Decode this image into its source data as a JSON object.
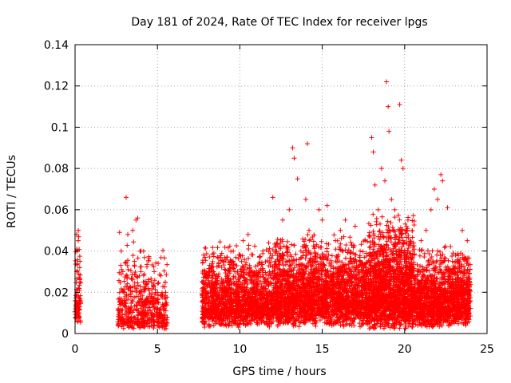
{
  "chart_data": {
    "type": "scatter",
    "title": "Day 181 of 2024, Rate Of TEC Index for receiver lpgs",
    "xlabel": "GPS time / hours",
    "ylabel": "ROTI / TECUs",
    "xlim": [
      0,
      25
    ],
    "ylim": [
      0,
      0.14
    ],
    "xticks": [
      0,
      5,
      10,
      15,
      20,
      25
    ],
    "yticks": [
      0,
      0.02,
      0.04,
      0.06,
      0.08,
      0.1,
      0.12,
      0.14
    ],
    "xtick_labels": [
      "0",
      "5",
      "10",
      "15",
      "20",
      "25"
    ],
    "ytick_labels": [
      "0",
      "0.02",
      "0.04",
      "0.06",
      "0.08",
      "0.1",
      "0.12",
      "0.14"
    ],
    "grid": true,
    "marker": "+",
    "color": "#ff0000",
    "series": [
      {
        "name": "ROTI",
        "points": [
          [
            0.05,
            0.008
          ],
          [
            0.1,
            0.048
          ],
          [
            0.1,
            0.03
          ],
          [
            0.12,
            0.015
          ],
          [
            0.15,
            0.04
          ],
          [
            0.2,
            0.05
          ],
          [
            0.2,
            0.022
          ],
          [
            0.25,
            0.01
          ],
          [
            0.3,
            0.035
          ],
          [
            2.7,
            0.049
          ],
          [
            2.8,
            0.04
          ],
          [
            2.9,
            0.03
          ],
          [
            3.0,
            0.02
          ],
          [
            3.1,
            0.066
          ],
          [
            3.2,
            0.048
          ],
          [
            3.3,
            0.01
          ],
          [
            3.5,
            0.05
          ],
          [
            3.6,
            0.035
          ],
          [
            3.7,
            0.055
          ],
          [
            3.8,
            0.056
          ],
          [
            3.9,
            0.02
          ],
          [
            4.0,
            0.04
          ],
          [
            4.1,
            0.005
          ],
          [
            4.2,
            0.025
          ],
          [
            4.5,
            0.015
          ],
          [
            4.8,
            0.03
          ],
          [
            5.0,
            0.01
          ],
          [
            5.2,
            0.028
          ],
          [
            5.4,
            0.008
          ],
          [
            5.5,
            0.02
          ],
          [
            7.8,
            0.038
          ],
          [
            8.0,
            0.02
          ],
          [
            8.3,
            0.03
          ],
          [
            8.6,
            0.012
          ],
          [
            9.0,
            0.035
          ],
          [
            9.3,
            0.025
          ],
          [
            9.6,
            0.04
          ],
          [
            9.9,
            0.015
          ],
          [
            10.2,
            0.045
          ],
          [
            10.5,
            0.048
          ],
          [
            10.8,
            0.03
          ],
          [
            11.1,
            0.02
          ],
          [
            11.4,
            0.04
          ],
          [
            11.8,
            0.03
          ],
          [
            12.0,
            0.066
          ],
          [
            12.3,
            0.025
          ],
          [
            12.6,
            0.055
          ],
          [
            13.0,
            0.06
          ],
          [
            13.2,
            0.09
          ],
          [
            13.3,
            0.085
          ],
          [
            13.5,
            0.075
          ],
          [
            13.7,
            0.04
          ],
          [
            14.0,
            0.065
          ],
          [
            14.1,
            0.092
          ],
          [
            14.2,
            0.05
          ],
          [
            14.5,
            0.035
          ],
          [
            14.8,
            0.06
          ],
          [
            15.0,
            0.055
          ],
          [
            15.3,
            0.062
          ],
          [
            15.5,
            0.03
          ],
          [
            15.8,
            0.045
          ],
          [
            16.1,
            0.05
          ],
          [
            16.4,
            0.055
          ],
          [
            16.7,
            0.035
          ],
          [
            17.0,
            0.052
          ],
          [
            17.3,
            0.04
          ],
          [
            17.6,
            0.045
          ],
          [
            18.0,
            0.095
          ],
          [
            18.1,
            0.088
          ],
          [
            18.2,
            0.072
          ],
          [
            18.4,
            0.06
          ],
          [
            18.6,
            0.08
          ],
          [
            18.8,
            0.074
          ],
          [
            18.9,
            0.122
          ],
          [
            19.0,
            0.11
          ],
          [
            19.05,
            0.098
          ],
          [
            19.2,
            0.065
          ],
          [
            19.4,
            0.06
          ],
          [
            19.7,
            0.111
          ],
          [
            19.8,
            0.084
          ],
          [
            19.9,
            0.08
          ],
          [
            20.2,
            0.055
          ],
          [
            20.5,
            0.04
          ],
          [
            20.8,
            0.03
          ],
          [
            21.0,
            0.045
          ],
          [
            21.3,
            0.05
          ],
          [
            21.6,
            0.06
          ],
          [
            21.8,
            0.07
          ],
          [
            22.0,
            0.065
          ],
          [
            22.2,
            0.077
          ],
          [
            22.3,
            0.074
          ],
          [
            22.6,
            0.061
          ],
          [
            22.9,
            0.035
          ],
          [
            23.2,
            0.03
          ],
          [
            23.5,
            0.05
          ],
          [
            23.8,
            0.045
          ],
          [
            23.9,
            0.01
          ]
        ]
      }
    ],
    "density_segments": [
      {
        "x": [
          0.0,
          0.35
        ],
        "floor": [
          0.004,
          0.012
        ],
        "ceil": [
          0.02,
          0.05
        ],
        "density": 90
      },
      {
        "x": [
          2.6,
          5.6
        ],
        "floor": [
          0.002,
          0.006
        ],
        "ceil": [
          0.015,
          0.048
        ],
        "density": 520
      },
      {
        "x": [
          7.7,
          12.0
        ],
        "floor": [
          0.003,
          0.012
        ],
        "ceil": [
          0.02,
          0.045
        ],
        "density": 1500
      },
      {
        "x": [
          12.0,
          17.8
        ],
        "floor": [
          0.003,
          0.015
        ],
        "ceil": [
          0.025,
          0.05
        ],
        "density": 2400
      },
      {
        "x": [
          17.8,
          20.6
        ],
        "floor": [
          0.002,
          0.015
        ],
        "ceil": [
          0.03,
          0.06
        ],
        "density": 1600
      },
      {
        "x": [
          20.6,
          24.0
        ],
        "floor": [
          0.003,
          0.012
        ],
        "ceil": [
          0.02,
          0.045
        ],
        "density": 1400
      }
    ]
  }
}
